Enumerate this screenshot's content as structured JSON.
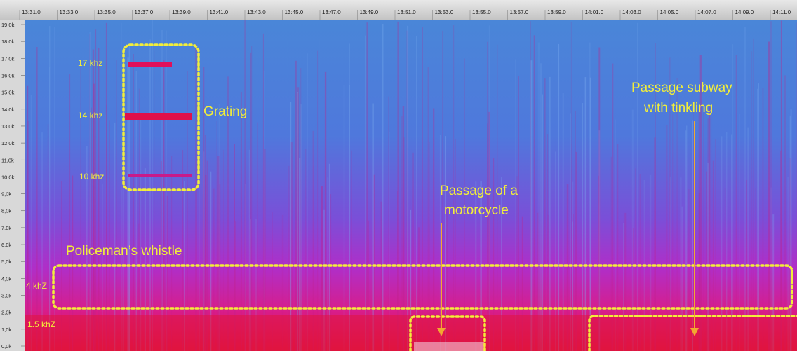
{
  "time_axis": {
    "labels": [
      "13:31.0",
      "13:33.0",
      "13:35.0",
      "13:37.0",
      "13:39.0",
      "13:41.0",
      "13:43.0",
      "13:45.0",
      "13:47.0",
      "13:49.0",
      "13:51.0",
      "13:53.0",
      "13:55.0",
      "13:57.0",
      "13:59.0",
      "14:01.0",
      "14:03.0",
      "14:05.0",
      "14:07.0",
      "14:09.0",
      "14:11.0"
    ]
  },
  "frequency_axis": {
    "labels": [
      "19,0k",
      "18,0k",
      "17,0k",
      "16,0k",
      "15,0k",
      "14,0k",
      "13,0k",
      "12,0k",
      "11,0k",
      "10,0k",
      "9,0k",
      "8,0k",
      "7,0k",
      "6,0k",
      "5,0k",
      "4,0k",
      "3,0k",
      "2,0k",
      "1,0k",
      "0,0k"
    ]
  },
  "annotations": {
    "grating": {
      "label": "Grating",
      "lines": [
        "17 khz",
        "14 khz",
        "10 khz"
      ]
    },
    "whistle": {
      "label": "Policeman’s whistle",
      "frequency": "4 khZ"
    },
    "low_band": "1.5 khZ",
    "motorcycle": {
      "lines": [
        "Passage of a",
        "motorcycle"
      ]
    },
    "subway": {
      "lines": [
        "Passage subway",
        "with tinkling"
      ]
    }
  }
}
